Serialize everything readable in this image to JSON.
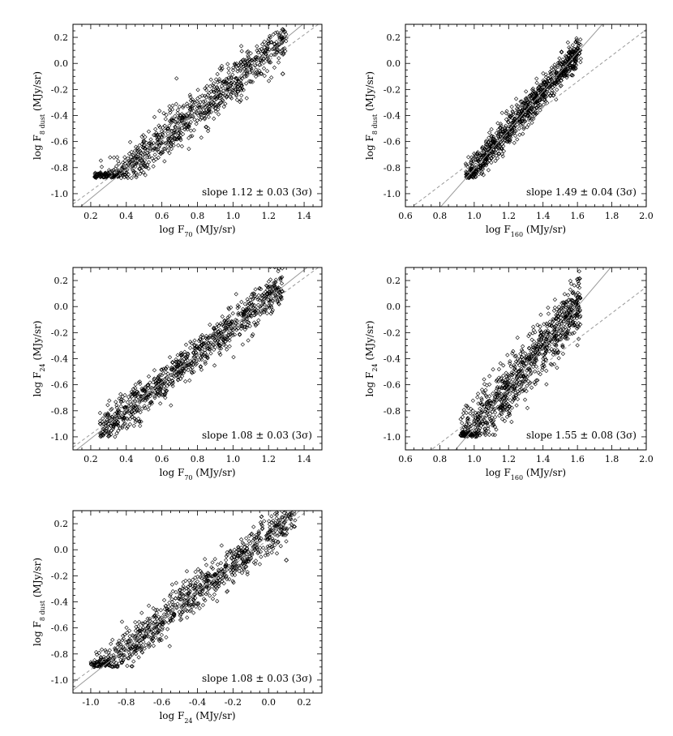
{
  "figure": {
    "background": "#ffffff",
    "point_color": "#000000"
  },
  "chart_data": [
    {
      "id": "p1",
      "type": "scatter",
      "xlim": [
        0.1,
        1.5
      ],
      "ylim": [
        -1.1,
        0.3
      ],
      "xticks": [
        0.2,
        0.4,
        0.6,
        0.8,
        1.0,
        1.2,
        1.4
      ],
      "xtick_labels": [
        "0.2",
        "0.4",
        "0.6",
        "0.8",
        "1.0",
        "1.2",
        "1.4"
      ],
      "yticks": [
        -1.0,
        -0.8,
        -0.6,
        -0.4,
        -0.2,
        0.0,
        0.2
      ],
      "ytick_labels": [
        "-1.0",
        "-0.8",
        "-0.6",
        "-0.4",
        "-0.2",
        "0.0",
        "0.2"
      ],
      "xlabel": "log F70 (MJy/sr)",
      "ylabel": "log F8 dust (MJy/sr)",
      "annotation": "slope 1.12 ± 0.03 (3σ)",
      "fit_line": {
        "slope": 1.12,
        "intercept": -1.26,
        "style": "solid",
        "color": "#999999"
      },
      "ref_line": {
        "slope": 1.0,
        "intercept": -1.18,
        "style": "dashed",
        "color": "#999999"
      },
      "cloud": {
        "x_range": [
          0.22,
          1.3
        ],
        "y_floor": -0.88,
        "scatter": 0.08,
        "count": 900
      },
      "sample_points": [
        [
          0.3,
          -0.85
        ],
        [
          0.5,
          -0.6
        ],
        [
          0.7,
          -0.42
        ],
        [
          0.9,
          -0.26
        ],
        [
          1.1,
          -0.14
        ],
        [
          1.28,
          -0.08
        ]
      ]
    },
    {
      "id": "p2",
      "type": "scatter",
      "xlim": [
        0.6,
        2.0
      ],
      "ylim": [
        -1.1,
        0.3
      ],
      "xticks": [
        0.6,
        0.8,
        1.0,
        1.2,
        1.4,
        1.6,
        1.8,
        2.0
      ],
      "xtick_labels": [
        "0.6",
        "0.8",
        "1.0",
        "1.2",
        "1.4",
        "1.6",
        "1.8",
        "2.0"
      ],
      "yticks": [
        -1.0,
        -0.8,
        -0.6,
        -0.4,
        -0.2,
        0.0,
        0.2
      ],
      "ytick_labels": [
        "-1.0",
        "-0.8",
        "-0.6",
        "-0.4",
        "-0.2",
        "0.0",
        "0.2"
      ],
      "xlabel": "log F160 (MJy/sr)",
      "ylabel": "log F8 dust (MJy/sr)",
      "annotation": "slope 1.49 ± 0.04 (3σ)",
      "fit_line": {
        "slope": 1.49,
        "intercept": -2.3,
        "style": "solid",
        "color": "#999999"
      },
      "ref_line": {
        "slope": 1.0,
        "intercept": -1.74,
        "style": "dashed",
        "color": "#999999"
      },
      "cloud": {
        "x_range": [
          0.95,
          1.62
        ],
        "y_floor": -0.88,
        "scatter": 0.06,
        "count": 900
      },
      "sample_points": [
        [
          1.0,
          -0.86
        ],
        [
          1.2,
          -0.52
        ],
        [
          1.4,
          -0.24
        ],
        [
          1.55,
          -0.06
        ]
      ]
    },
    {
      "id": "p3",
      "type": "scatter",
      "xlim": [
        0.1,
        1.5
      ],
      "ylim": [
        -1.1,
        0.3
      ],
      "xticks": [
        0.2,
        0.4,
        0.6,
        0.8,
        1.0,
        1.2,
        1.4
      ],
      "xtick_labels": [
        "0.2",
        "0.4",
        "0.6",
        "0.8",
        "1.0",
        "1.2",
        "1.4"
      ],
      "yticks": [
        -1.0,
        -0.8,
        -0.6,
        -0.4,
        -0.2,
        0.0,
        0.2
      ],
      "ytick_labels": [
        "-1.0",
        "-0.8",
        "-0.6",
        "-0.4",
        "-0.2",
        "0.0",
        "0.2"
      ],
      "xlabel": "log F70 (MJy/sr)",
      "ylabel": "log F24 (MJy/sr)",
      "annotation": "slope 1.08 ± 0.03 (3σ)",
      "fit_line": {
        "slope": 1.08,
        "intercept": -1.23,
        "style": "solid",
        "color": "#999999"
      },
      "ref_line": {
        "slope": 1.0,
        "intercept": -1.18,
        "style": "dashed",
        "color": "#999999"
      },
      "cloud": {
        "x_range": [
          0.25,
          1.28
        ],
        "y_floor": -1.0,
        "scatter": 0.07,
        "count": 900
      },
      "sample_points": [
        [
          0.3,
          -0.9
        ],
        [
          0.6,
          -0.58
        ],
        [
          0.9,
          -0.26
        ],
        [
          1.2,
          0.05
        ]
      ]
    },
    {
      "id": "p4",
      "type": "scatter",
      "xlim": [
        0.6,
        2.0
      ],
      "ylim": [
        -1.1,
        0.3
      ],
      "xticks": [
        0.6,
        0.8,
        1.0,
        1.2,
        1.4,
        1.6,
        1.8,
        2.0
      ],
      "xtick_labels": [
        "0.6",
        "0.8",
        "1.0",
        "1.2",
        "1.4",
        "1.6",
        "1.8",
        "2.0"
      ],
      "yticks": [
        -1.0,
        -0.8,
        -0.6,
        -0.4,
        -0.2,
        0.0,
        0.2
      ],
      "ytick_labels": [
        "-1.0",
        "-0.8",
        "-0.6",
        "-0.4",
        "-0.2",
        "0.0",
        "0.2"
      ],
      "xlabel": "log F160 (MJy/sr)",
      "ylabel": "log F24 (MJy/sr)",
      "annotation": "slope 1.55 ± 0.08 (3σ)",
      "fit_line": {
        "slope": 1.55,
        "intercept": -2.48,
        "style": "solid",
        "color": "#999999"
      },
      "ref_line": {
        "slope": 1.0,
        "intercept": -1.85,
        "style": "dashed",
        "color": "#999999"
      },
      "cloud": {
        "x_range": [
          0.92,
          1.62
        ],
        "y_floor": -1.0,
        "scatter": 0.11,
        "count": 900
      },
      "sample_points": [
        [
          1.0,
          -0.9
        ],
        [
          1.2,
          -0.62
        ],
        [
          1.4,
          -0.3
        ],
        [
          1.55,
          0.05
        ]
      ]
    },
    {
      "id": "p5",
      "type": "scatter",
      "xlim": [
        -1.1,
        0.3
      ],
      "ylim": [
        -1.1,
        0.3
      ],
      "xticks": [
        -1.0,
        -0.8,
        -0.6,
        -0.4,
        -0.2,
        0.0,
        0.2
      ],
      "xtick_labels": [
        "-1.0",
        "-0.8",
        "-0.6",
        "-0.4",
        "-0.2",
        "0.0",
        "0.2"
      ],
      "yticks": [
        -1.0,
        -0.8,
        -0.6,
        -0.4,
        -0.2,
        0.0,
        0.2
      ],
      "ytick_labels": [
        "-1.0",
        "-0.8",
        "-0.6",
        "-0.4",
        "-0.2",
        "0.0",
        "0.2"
      ],
      "xlabel": "log F24 (MJy/sr)",
      "ylabel": "log F8 dust (MJy/sr)",
      "annotation": "slope 1.08 ± 0.03 (3σ)",
      "fit_line": {
        "slope": 1.08,
        "intercept": 0.11,
        "style": "solid",
        "color": "#999999"
      },
      "ref_line": {
        "slope": 1.0,
        "intercept": 0.08,
        "style": "dashed",
        "color": "#999999"
      },
      "cloud": {
        "x_range": [
          -1.0,
          0.15
        ],
        "y_floor": -0.9,
        "scatter": 0.08,
        "count": 900
      },
      "sample_points": [
        [
          -0.95,
          -0.86
        ],
        [
          -0.6,
          -0.56
        ],
        [
          -0.3,
          -0.26
        ],
        [
          0.1,
          -0.08
        ]
      ]
    }
  ]
}
